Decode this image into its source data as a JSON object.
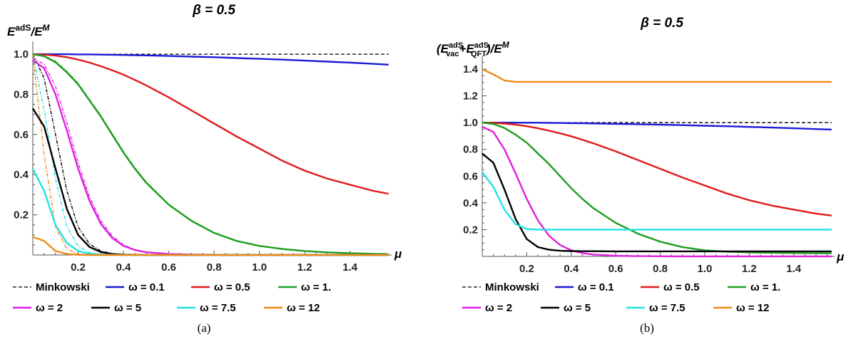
{
  "chart_data": [
    {
      "type": "line",
      "title": "β = 0.5",
      "ylabel_base": "E",
      "ylabel_sup1": "adS",
      "ylabel_mid": "/E",
      "ylabel_sup2": "M",
      "xlabel": "μ",
      "caption": "(a)",
      "xlim": [
        0,
        1.5708
      ],
      "ylim": [
        0,
        1.05
      ],
      "x_ticks": [
        "0.2",
        "0.4",
        "0.6",
        "0.8",
        "1.0",
        "1.2",
        "1.4"
      ],
      "x_tick_values": [
        0.2,
        0.4,
        0.6,
        0.8,
        1.0,
        1.2,
        1.4
      ],
      "y_ticks": [
        "0.2",
        "0.4",
        "0.6",
        "0.8",
        "1.0"
      ],
      "y_tick_values": [
        0.2,
        0.4,
        0.6,
        0.8,
        1.0
      ],
      "x": [
        0,
        0.05,
        0.1,
        0.15,
        0.2,
        0.25,
        0.3,
        0.35,
        0.4,
        0.45,
        0.5,
        0.6,
        0.7,
        0.8,
        0.9,
        1.0,
        1.1,
        1.2,
        1.3,
        1.4,
        1.5,
        1.57
      ],
      "series": [
        {
          "name": "Minkowski",
          "color": "#000000",
          "dash": true,
          "values": [
            1,
            1,
            1,
            1,
            1,
            1,
            1,
            1,
            1,
            1,
            1,
            1,
            1,
            1,
            1,
            1,
            1,
            1,
            1,
            1,
            1,
            1
          ]
        },
        {
          "name": "ω = 0.1",
          "color": "#1b1bd6",
          "values": [
            1.0,
            1.0,
            1.0,
            1.0,
            0.999,
            0.999,
            0.998,
            0.997,
            0.996,
            0.995,
            0.994,
            0.991,
            0.988,
            0.985,
            0.981,
            0.977,
            0.973,
            0.968,
            0.963,
            0.958,
            0.952,
            0.948
          ]
        },
        {
          "name": "ω = 0.5",
          "color": "#e01b1b",
          "values": [
            1.0,
            0.998,
            0.993,
            0.985,
            0.973,
            0.958,
            0.94,
            0.92,
            0.898,
            0.872,
            0.845,
            0.785,
            0.72,
            0.655,
            0.59,
            0.53,
            0.47,
            0.42,
            0.38,
            0.35,
            0.32,
            0.305
          ]
        },
        {
          "name": "ω = 1.",
          "color": "#1f9e1f",
          "values": [
            1.0,
            0.99,
            0.96,
            0.91,
            0.85,
            0.77,
            0.69,
            0.6,
            0.51,
            0.43,
            0.36,
            0.25,
            0.17,
            0.11,
            0.07,
            0.045,
            0.03,
            0.02,
            0.013,
            0.009,
            0.006,
            0.004
          ]
        },
        {
          "name": "ω = 2",
          "color": "#e020e0",
          "values": [
            0.97,
            0.93,
            0.8,
            0.62,
            0.43,
            0.27,
            0.155,
            0.085,
            0.045,
            0.025,
            0.014,
            0.005,
            0.002,
            0.001,
            0,
            0,
            0,
            0,
            0,
            0,
            0,
            0
          ]
        },
        {
          "name": "ω = 5",
          "color": "#000000",
          "values": [
            0.73,
            0.64,
            0.43,
            0.23,
            0.1,
            0.04,
            0.015,
            0.005,
            0.002,
            0.001,
            0,
            0,
            0,
            0,
            0,
            0,
            0,
            0,
            0,
            0,
            0,
            0
          ]
        },
        {
          "name": "ω = 7.5",
          "color": "#22e2e2",
          "values": [
            0.43,
            0.32,
            0.15,
            0.06,
            0.02,
            0.006,
            0.002,
            0.001,
            0,
            0,
            0,
            0,
            0,
            0,
            0,
            0,
            0,
            0,
            0,
            0,
            0,
            0
          ]
        },
        {
          "name": "ω = 12",
          "color": "#f08a1a",
          "values": [
            0.09,
            0.07,
            0.02,
            0.005,
            0.001,
            0,
            0,
            0,
            0,
            0,
            0,
            0,
            0,
            0,
            0,
            0,
            0,
            0,
            0,
            0,
            0,
            0
          ]
        }
      ],
      "dashed_companions": [
        {
          "color": "#e020e0",
          "values": [
            0.98,
            0.95,
            0.84,
            0.66,
            0.46,
            0.29,
            0.17,
            0.095,
            0.05,
            0.027,
            0.015,
            0.005,
            0.002,
            0.001,
            0,
            0,
            0,
            0,
            0,
            0,
            0,
            0
          ]
        },
        {
          "color": "#1f9e1f",
          "values": [
            1.0,
            0.992,
            0.965,
            0.915,
            0.855,
            0.775,
            0.695,
            0.605,
            0.515,
            0.435,
            0.365,
            0.253,
            0.172,
            0.112,
            0.071,
            0.046,
            0.03,
            0.02,
            0.013,
            0.009,
            0.006,
            0.004
          ]
        },
        {
          "color": "#000000",
          "values": [
            1.0,
            0.88,
            0.6,
            0.32,
            0.14,
            0.055,
            0.02,
            0.007,
            0.002,
            0.001,
            0,
            0,
            0,
            0,
            0,
            0,
            0,
            0,
            0,
            0,
            0,
            0
          ]
        },
        {
          "color": "#22e2e2",
          "values": [
            1.0,
            0.72,
            0.38,
            0.14,
            0.045,
            0.012,
            0.003,
            0.001,
            0,
            0,
            0,
            0,
            0,
            0,
            0,
            0,
            0,
            0,
            0,
            0,
            0,
            0
          ]
        },
        {
          "color": "#f08a1a",
          "values": [
            1.0,
            0.5,
            0.14,
            0.03,
            0.005,
            0.001,
            0,
            0,
            0,
            0,
            0,
            0,
            0,
            0,
            0,
            0,
            0,
            0,
            0,
            0,
            0,
            0
          ]
        }
      ]
    },
    {
      "type": "line",
      "title": "β = 0.5",
      "ylabel_open": "(E",
      "ylabel_sub1": "vac",
      "ylabel_sup1": "adS",
      "ylabel_plus": "+E",
      "ylabel_sub2": "QFT",
      "ylabel_sup2": "adS",
      "ylabel_close": ")/E",
      "ylabel_sup3": "M",
      "xlabel": "μ",
      "caption": "(b)",
      "xlim": [
        0,
        1.5708
      ],
      "ylim": [
        0,
        1.48
      ],
      "x_ticks": [
        "0.2",
        "0.4",
        "0.6",
        "0.8",
        "1.0",
        "1.2",
        "1.4"
      ],
      "x_tick_values": [
        0.2,
        0.4,
        0.6,
        0.8,
        1.0,
        1.2,
        1.4
      ],
      "y_ticks": [
        "0.2",
        "0.4",
        "0.6",
        "0.8",
        "1.0",
        "1.2",
        "1.4"
      ],
      "y_tick_values": [
        0.2,
        0.4,
        0.6,
        0.8,
        1.0,
        1.2,
        1.4
      ],
      "x": [
        0,
        0.05,
        0.1,
        0.15,
        0.2,
        0.25,
        0.3,
        0.35,
        0.4,
        0.45,
        0.5,
        0.6,
        0.7,
        0.8,
        0.9,
        1.0,
        1.1,
        1.2,
        1.3,
        1.4,
        1.5,
        1.57
      ],
      "series": [
        {
          "name": "Minkowski",
          "color": "#000000",
          "dash": true,
          "values": [
            1,
            1,
            1,
            1,
            1,
            1,
            1,
            1,
            1,
            1,
            1,
            1,
            1,
            1,
            1,
            1,
            1,
            1,
            1,
            1,
            1,
            1
          ]
        },
        {
          "name": "ω = 0.1",
          "color": "#1b1bd6",
          "values": [
            1.0,
            1.0,
            1.0,
            1.0,
            0.999,
            0.999,
            0.998,
            0.997,
            0.996,
            0.995,
            0.994,
            0.991,
            0.988,
            0.985,
            0.981,
            0.977,
            0.973,
            0.968,
            0.963,
            0.958,
            0.952,
            0.948
          ]
        },
        {
          "name": "ω = 0.5",
          "color": "#e01b1b",
          "values": [
            1.0,
            0.998,
            0.993,
            0.985,
            0.973,
            0.958,
            0.94,
            0.92,
            0.898,
            0.872,
            0.845,
            0.785,
            0.72,
            0.655,
            0.59,
            0.53,
            0.47,
            0.42,
            0.38,
            0.35,
            0.32,
            0.305
          ]
        },
        {
          "name": "ω = 1.",
          "color": "#1f9e1f",
          "values": [
            1.0,
            0.99,
            0.96,
            0.91,
            0.85,
            0.77,
            0.69,
            0.6,
            0.51,
            0.43,
            0.36,
            0.25,
            0.17,
            0.11,
            0.07,
            0.045,
            0.035,
            0.03,
            0.027,
            0.025,
            0.024,
            0.024
          ]
        },
        {
          "name": "ω = 2",
          "color": "#e020e0",
          "values": [
            0.97,
            0.93,
            0.8,
            0.62,
            0.43,
            0.27,
            0.155,
            0.085,
            0.045,
            0.025,
            0.014,
            0.005,
            0.002,
            0.001,
            0,
            0,
            0,
            0,
            0,
            0,
            0,
            0
          ]
        },
        {
          "name": "ω = 5",
          "color": "#000000",
          "values": [
            0.77,
            0.7,
            0.5,
            0.28,
            0.13,
            0.07,
            0.05,
            0.042,
            0.04,
            0.039,
            0.039,
            0.038,
            0.038,
            0.038,
            0.038,
            0.038,
            0.038,
            0.038,
            0.038,
            0.038,
            0.038,
            0.038
          ]
        },
        {
          "name": "ω = 7.5",
          "color": "#22e2e2",
          "values": [
            0.63,
            0.52,
            0.35,
            0.24,
            0.205,
            0.2,
            0.2,
            0.2,
            0.2,
            0.2,
            0.2,
            0.2,
            0.2,
            0.2,
            0.2,
            0.2,
            0.2,
            0.2,
            0.2,
            0.2,
            0.2,
            0.2
          ]
        },
        {
          "name": "ω = 12",
          "color": "#f08a1a",
          "values": [
            1.4,
            1.36,
            1.315,
            1.305,
            1.305,
            1.305,
            1.305,
            1.305,
            1.305,
            1.305,
            1.305,
            1.305,
            1.305,
            1.305,
            1.305,
            1.305,
            1.305,
            1.305,
            1.305,
            1.305,
            1.305,
            1.305
          ]
        }
      ]
    }
  ]
}
